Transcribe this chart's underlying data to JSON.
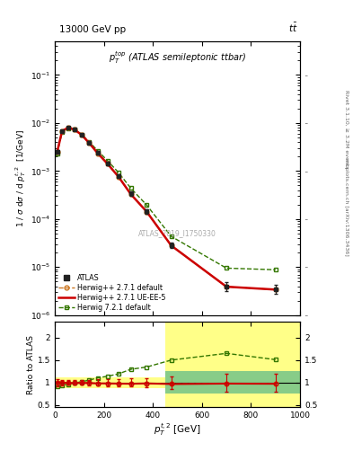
{
  "title_left": "13000 GeV pp",
  "title_right": "tt",
  "annotation": "p_{T}^{top} (ATLAS semileptonic ttbar)",
  "watermark": "ATLAS_2019_I1750330",
  "right_label1": "Rivet 3.1.10, ≥ 3.2M events",
  "right_label2": "mcplots.cern.ch [arXiv:1306.3436]",
  "xlabel": "$p_T^{t,2}$ [GeV]",
  "ylabel": "1 / $\\sigma$ d$\\sigma$ / d $p_T^{t,2}$  [1/GeV]",
  "ylabel_ratio": "Ratio to ATLAS",
  "atlas_x": [
    10,
    30,
    55,
    80,
    110,
    140,
    175,
    215,
    260,
    310,
    375,
    475,
    700,
    900
  ],
  "atlas_y": [
    0.0025,
    0.0068,
    0.0081,
    0.0074,
    0.0057,
    0.0039,
    0.0024,
    0.00145,
    0.00078,
    0.00034,
    0.000145,
    2.9e-05,
    4e-06,
    3.5e-06
  ],
  "atlas_yerr_lo": [
    0.0002,
    0.0004,
    0.0004,
    0.0004,
    0.0003,
    0.00025,
    0.00018,
    0.00012,
    6e-05,
    3e-05,
    1.5e-05,
    4e-06,
    8e-07,
    7e-07
  ],
  "atlas_yerr_hi": [
    0.0002,
    0.0004,
    0.0004,
    0.0004,
    0.0003,
    0.00025,
    0.00018,
    0.00012,
    6e-05,
    3e-05,
    1.5e-05,
    4e-06,
    8e-07,
    7e-07
  ],
  "hw271d_x": [
    10,
    30,
    55,
    80,
    110,
    140,
    175,
    215,
    260,
    310,
    375,
    475,
    700,
    900
  ],
  "hw271d_y": [
    0.0025,
    0.0068,
    0.008,
    0.0073,
    0.00565,
    0.00385,
    0.00235,
    0.00142,
    0.00076,
    0.00033,
    0.000142,
    2.8e-05,
    3.9e-06,
    3.4e-06
  ],
  "hw271ue_x": [
    10,
    30,
    55,
    80,
    110,
    140,
    175,
    215,
    260,
    310,
    375,
    475,
    700,
    900
  ],
  "hw271ue_y": [
    0.0025,
    0.0068,
    0.008,
    0.0073,
    0.00565,
    0.00385,
    0.00235,
    0.00142,
    0.00076,
    0.00033,
    0.000142,
    2.8e-05,
    3.9e-06,
    3.4e-06
  ],
  "hw721d_x": [
    10,
    30,
    55,
    80,
    110,
    140,
    175,
    215,
    260,
    310,
    375,
    475,
    700,
    900
  ],
  "hw721d_y": [
    0.0023,
    0.0064,
    0.0078,
    0.0073,
    0.0058,
    0.0041,
    0.00265,
    0.00165,
    0.00093,
    0.00044,
    0.000195,
    4.35e-05,
    9.5e-06,
    8.8e-06
  ],
  "ratio_hw271d": [
    1.0,
    1.0,
    0.99,
    0.985,
    0.99,
    0.987,
    0.979,
    0.979,
    0.974,
    0.971,
    0.979,
    0.965,
    0.975,
    0.971
  ],
  "ratio_hw271ue": [
    1.0,
    1.0,
    0.99,
    0.985,
    0.99,
    0.987,
    0.979,
    0.979,
    0.974,
    0.971,
    0.979,
    0.965,
    0.975,
    0.971
  ],
  "ratio_hw721d": [
    0.92,
    0.94,
    0.963,
    0.986,
    1.018,
    1.051,
    1.104,
    1.138,
    1.192,
    1.294,
    1.345,
    1.5,
    1.65,
    1.51
  ],
  "ratio_atlas_err": [
    0.08,
    0.059,
    0.049,
    0.054,
    0.053,
    0.064,
    0.075,
    0.083,
    0.077,
    0.088,
    0.103,
    0.138,
    0.2,
    0.2
  ],
  "band_left_x1": 0,
  "band_left_x2": 450,
  "band_left_y1": 0.88,
  "band_left_y2": 1.12,
  "band_right_yellow_x1": 450,
  "band_right_yellow_x2": 1000,
  "band_right_yellow_y1": 0.45,
  "band_right_yellow_y2": 2.35,
  "band_right_green_x1": 450,
  "band_right_green_x2": 1000,
  "band_right_green_y1": 0.75,
  "band_right_green_y2": 1.25,
  "color_atlas": "#222222",
  "color_hw271d": "#cc7722",
  "color_hw271ue": "#cc0000",
  "color_hw721d": "#337700",
  "color_yellow": "#ffff88",
  "color_green": "#88cc88",
  "ylim_main": [
    1e-06,
    0.5
  ],
  "xlim": [
    0,
    1000
  ],
  "ylim_ratio": [
    0.45,
    2.35
  ]
}
